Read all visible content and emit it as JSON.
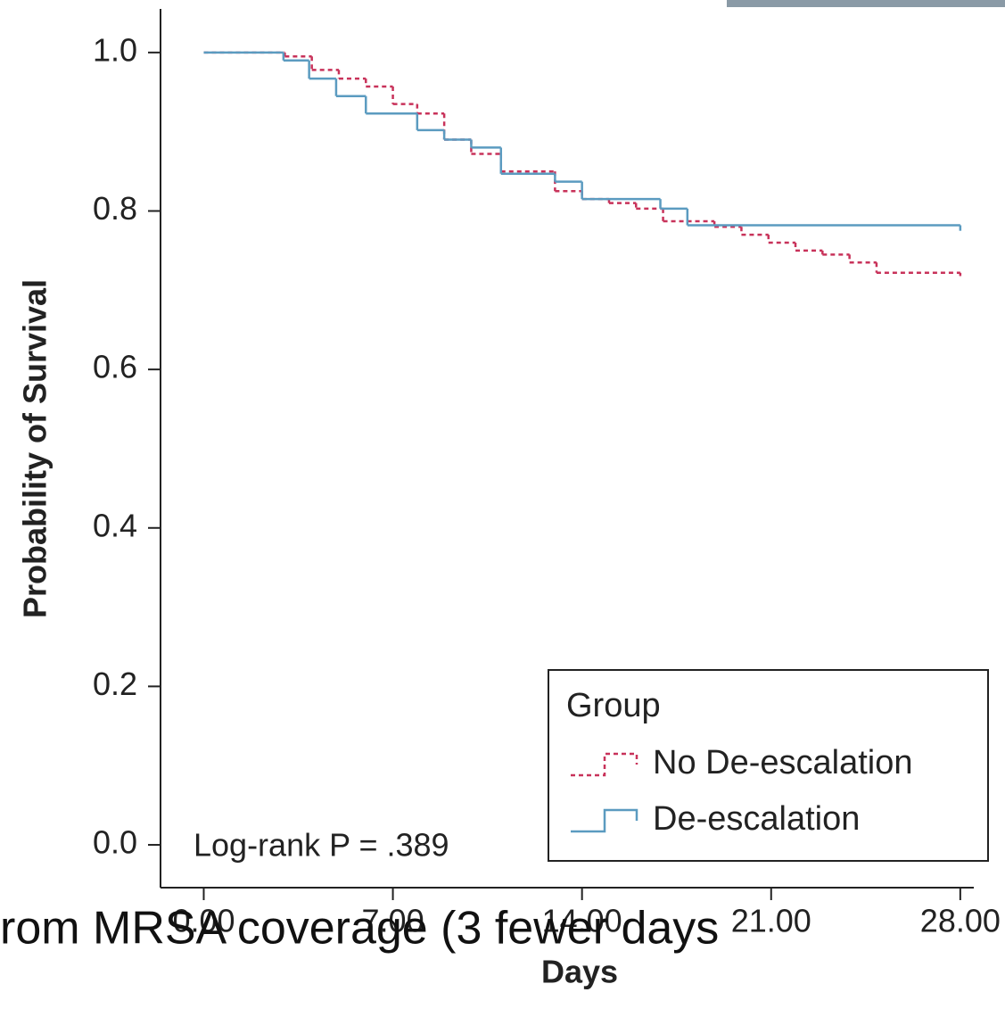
{
  "chart_data": {
    "type": "step",
    "xlabel": "Days",
    "ylabel": "Probability of Survival",
    "xlim": [
      -1.6,
      28.5
    ],
    "ylim": [
      -0.054,
      1.055
    ],
    "xticks": [
      {
        "value": 0,
        "label": "0.00"
      },
      {
        "value": 7,
        "label": "7.00"
      },
      {
        "value": 14,
        "label": "14.00"
      },
      {
        "value": 21,
        "label": "21.00"
      },
      {
        "value": 28,
        "label": "28.00"
      }
    ],
    "yticks": [
      {
        "value": 0,
        "label": "0.0"
      },
      {
        "value": 0.2,
        "label": "0.2"
      },
      {
        "value": 0.4,
        "label": "0.4"
      },
      {
        "value": 0.6,
        "label": "0.6"
      },
      {
        "value": 0.8,
        "label": "0.8"
      },
      {
        "value": 1,
        "label": "1.0"
      }
    ],
    "legend_title": "Group",
    "legend_position": "lower right",
    "annotation": "Log-rank P = .389",
    "series": [
      {
        "name": "No De-escalation",
        "color": "#c8325a",
        "dash": true,
        "x": [
          0,
          3,
          4,
          5,
          6,
          7,
          7.9,
          8.9,
          9.9,
          11,
          13,
          14,
          15,
          16,
          17,
          18.9,
          19.9,
          20.9,
          21.9,
          22.9,
          23.9,
          24.9,
          28
        ],
        "values": [
          1,
          0.995,
          0.978,
          0.967,
          0.957,
          0.935,
          0.923,
          0.89,
          0.872,
          0.85,
          0.825,
          0.815,
          0.81,
          0.803,
          0.787,
          0.78,
          0.77,
          0.76,
          0.75,
          0.745,
          0.735,
          0.722,
          0.718
        ]
      },
      {
        "name": "De-escalation",
        "color": "#5b9bc0",
        "dash": false,
        "x": [
          0,
          2.95,
          3.9,
          4.9,
          6,
          7.9,
          8.9,
          9.9,
          11,
          13,
          14,
          16.9,
          17.9,
          28
        ],
        "values": [
          1,
          0.99,
          0.967,
          0.945,
          0.923,
          0.902,
          0.89,
          0.88,
          0.847,
          0.837,
          0.815,
          0.803,
          0.782,
          0.775
        ]
      }
    ]
  },
  "caption_fragment": "rom MRSA coverage (3 fewer days"
}
